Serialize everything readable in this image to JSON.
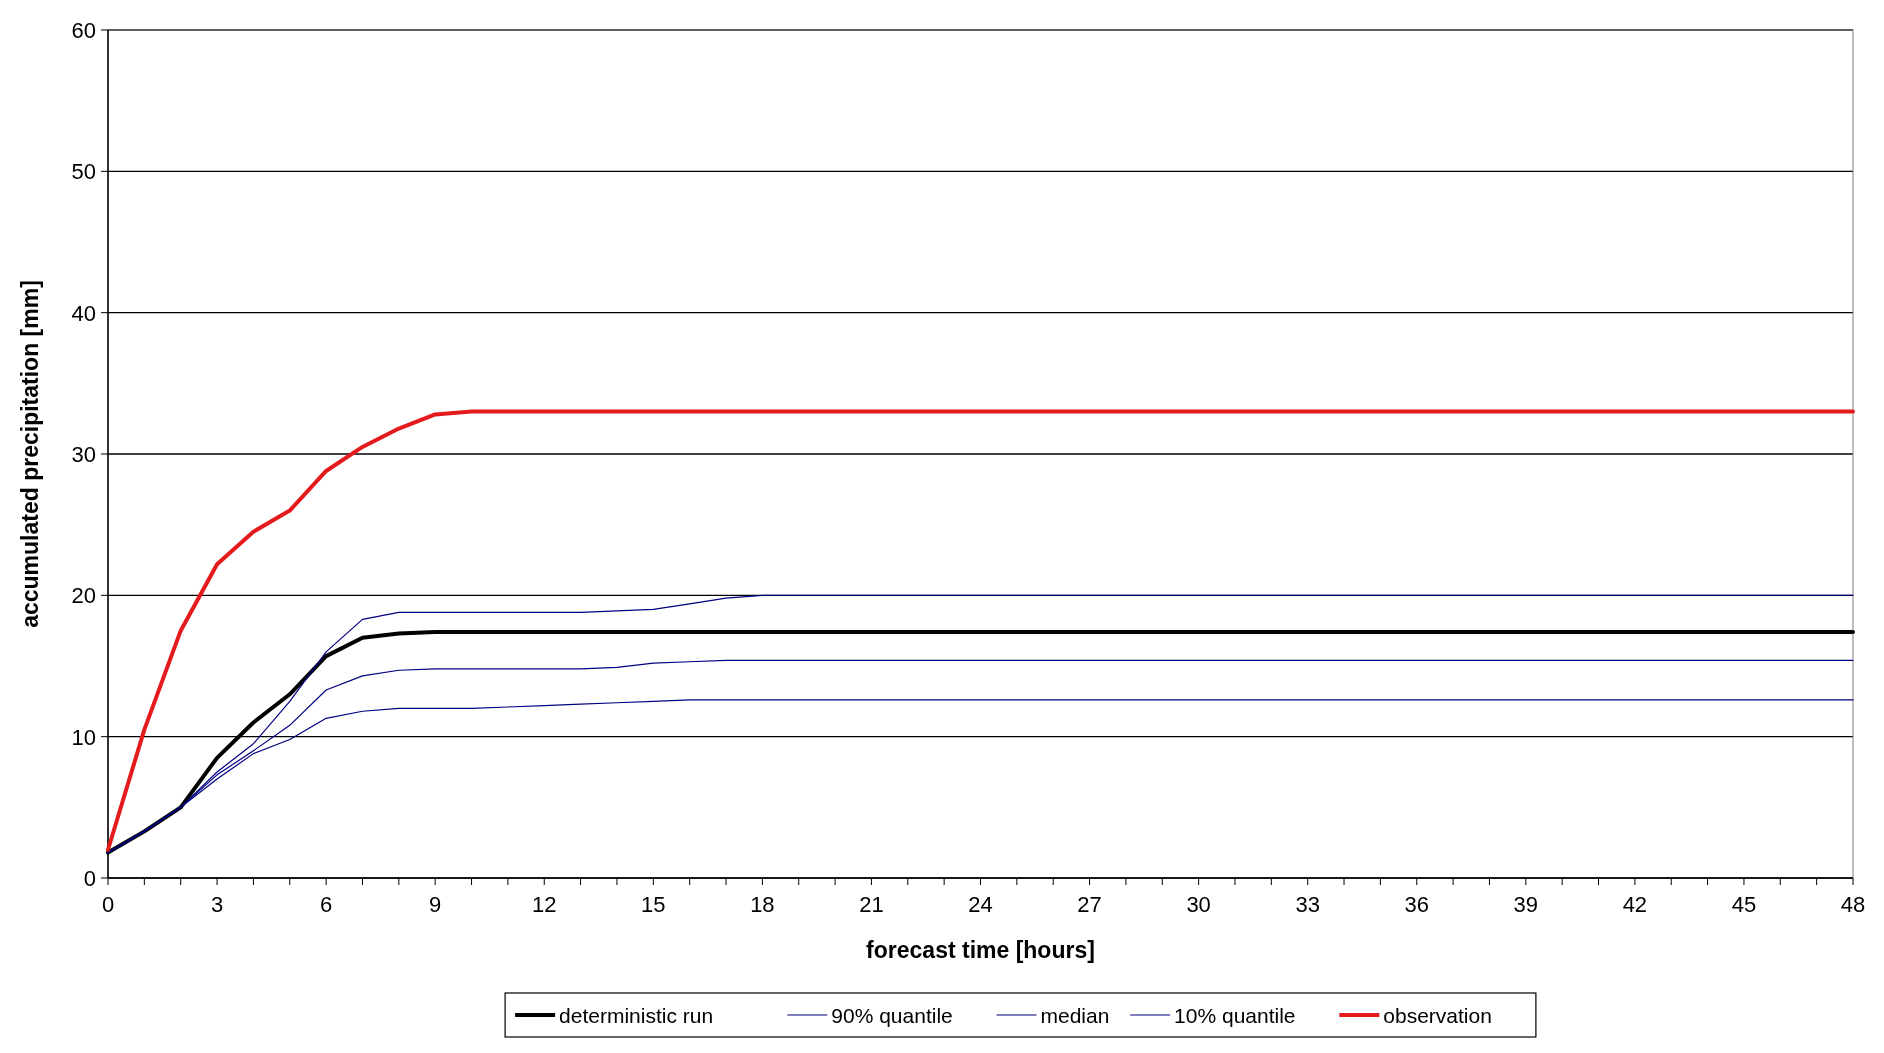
{
  "chart_data": {
    "type": "line",
    "xlabel": "forecast time [hours]",
    "ylabel": "accumulated precipitation  [mm]",
    "x": [
      0,
      1,
      2,
      3,
      4,
      5,
      6,
      7,
      8,
      9,
      10,
      11,
      12,
      13,
      14,
      15,
      16,
      17,
      18,
      19,
      20,
      21,
      22,
      23,
      24,
      25,
      26,
      27,
      28,
      29,
      30,
      31,
      32,
      33,
      34,
      35,
      36,
      37,
      38,
      39,
      40,
      41,
      42,
      43,
      44,
      45,
      46,
      47,
      48
    ],
    "xlim": [
      0,
      48
    ],
    "ylim": [
      0,
      60
    ],
    "yticks": [
      0,
      10,
      20,
      30,
      40,
      50,
      60
    ],
    "xticks": [
      0,
      {
        "value": 1,
        "label": null
      },
      {
        "value": 2,
        "label": null
      },
      3,
      {
        "value": 4,
        "label": null
      },
      {
        "value": 5,
        "label": null
      },
      6,
      {
        "value": 7,
        "label": null
      },
      {
        "value": 8,
        "label": null
      },
      9,
      {
        "value": 10,
        "label": null
      },
      {
        "value": 11,
        "label": null
      },
      12,
      {
        "value": 13,
        "label": null
      },
      {
        "value": 14,
        "label": null
      },
      15,
      {
        "value": 16,
        "label": null
      },
      {
        "value": 17,
        "label": null
      },
      18,
      {
        "value": 19,
        "label": null
      },
      {
        "value": 20,
        "label": null
      },
      21,
      {
        "value": 22,
        "label": null
      },
      {
        "value": 23,
        "label": null
      },
      24,
      {
        "value": 25,
        "label": null
      },
      {
        "value": 26,
        "label": null
      },
      27,
      {
        "value": 28,
        "label": null
      },
      {
        "value": 29,
        "label": null
      },
      30,
      {
        "value": 31,
        "label": null
      },
      {
        "value": 32,
        "label": null
      },
      33,
      {
        "value": 34,
        "label": null
      },
      {
        "value": 35,
        "label": null
      },
      36,
      {
        "value": 37,
        "label": null
      },
      {
        "value": 38,
        "label": null
      },
      39,
      {
        "value": 40,
        "label": null
      },
      {
        "value": 41,
        "label": null
      },
      42,
      {
        "value": 43,
        "label": null
      },
      {
        "value": 44,
        "label": null
      },
      45,
      {
        "value": 46,
        "label": null
      },
      {
        "value": 47,
        "label": null
      },
      48
    ],
    "grid": "y",
    "legend": "bottom",
    "line_style": "solid",
    "series": [
      {
        "name": "deterministic run",
        "color": "#000000",
        "values": [
          1.8,
          3.3,
          5,
          8.5,
          11,
          13,
          15.7,
          17,
          17.3,
          17.4,
          17.4,
          17.4,
          17.4,
          17.4,
          17.4,
          17.4,
          17.4,
          17.4,
          17.4,
          17.4,
          17.4,
          17.4,
          17.4,
          17.4,
          17.4,
          17.4,
          17.4,
          17.4,
          17.4,
          17.4,
          17.4,
          17.4,
          17.4,
          17.4,
          17.4,
          17.4,
          17.4,
          17.4,
          17.4,
          17.4,
          17.4,
          17.4,
          17.4,
          17.4,
          17.4,
          17.4,
          17.4,
          17.4,
          17.4
        ]
      },
      {
        "name": "90% quantile",
        "color": "#000080",
        "values": [
          1.8,
          3.3,
          5,
          7.5,
          9.5,
          12.5,
          16,
          18.3,
          18.8,
          18.8,
          18.8,
          18.8,
          18.8,
          18.8,
          18.9,
          19,
          19.4,
          19.8,
          20,
          20,
          20,
          20,
          20,
          20,
          20,
          20,
          20,
          20,
          20,
          20,
          20,
          20,
          20,
          20,
          20,
          20,
          20,
          20,
          20,
          20,
          20,
          20,
          20,
          20,
          20,
          20,
          20,
          20,
          20
        ]
      },
      {
        "name": "median",
        "color": "#000080",
        "values": [
          1.8,
          3.3,
          5,
          7.3,
          9,
          10.8,
          13.3,
          14.3,
          14.7,
          14.8,
          14.8,
          14.8,
          14.8,
          14.8,
          14.9,
          15.2,
          15.3,
          15.4,
          15.4,
          15.4,
          15.4,
          15.4,
          15.4,
          15.4,
          15.4,
          15.4,
          15.4,
          15.4,
          15.4,
          15.4,
          15.4,
          15.4,
          15.4,
          15.4,
          15.4,
          15.4,
          15.4,
          15.4,
          15.4,
          15.4,
          15.4,
          15.4,
          15.4,
          15.4,
          15.4,
          15.4,
          15.4,
          15.4,
          15.4
        ]
      },
      {
        "name": "10% quantile",
        "color": "#000080",
        "values": [
          1.8,
          3.3,
          5,
          7,
          8.8,
          9.8,
          11.3,
          11.8,
          12,
          12,
          12,
          12.1,
          12.2,
          12.3,
          12.4,
          12.5,
          12.6,
          12.6,
          12.6,
          12.6,
          12.6,
          12.6,
          12.6,
          12.6,
          12.6,
          12.6,
          12.6,
          12.6,
          12.6,
          12.6,
          12.6,
          12.6,
          12.6,
          12.6,
          12.6,
          12.6,
          12.6,
          12.6,
          12.6,
          12.6,
          12.6,
          12.6,
          12.6,
          12.6,
          12.6,
          12.6,
          12.6,
          12.6,
          12.6
        ]
      },
      {
        "name": "observation",
        "color": "#e41a1c",
        "values": [
          2,
          10.5,
          17.5,
          22.2,
          24.5,
          26,
          28.8,
          30.5,
          31.8,
          32.8,
          33,
          33,
          33,
          33,
          33,
          33,
          33,
          33,
          33,
          33,
          33,
          33,
          33,
          33,
          33,
          33,
          33,
          33,
          33,
          33,
          33,
          33,
          33,
          33,
          33,
          33,
          33,
          33,
          33,
          33,
          33,
          33,
          33,
          33,
          33,
          33,
          33,
          33,
          33
        ]
      }
    ]
  }
}
